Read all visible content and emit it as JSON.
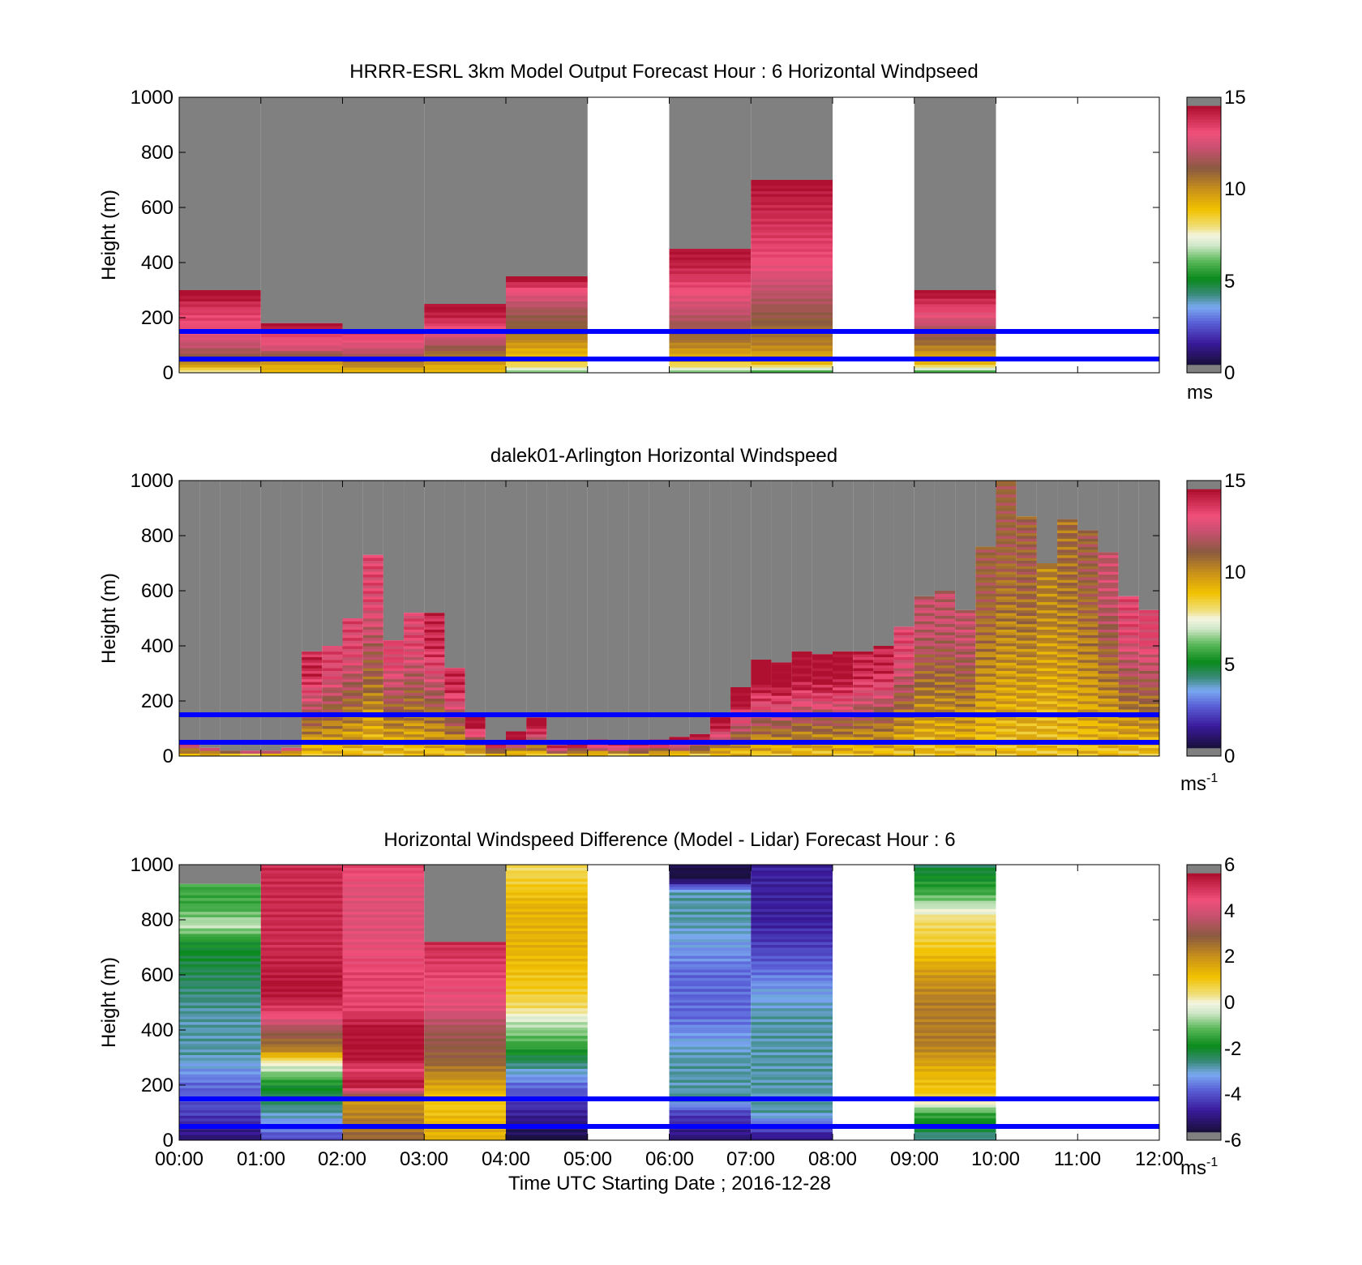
{
  "figure": {
    "panels": [
      {
        "title": "HRRR-ESRL 3km Model Output   Forecast Hour : 6 Horizontal Windpseed",
        "ylabel": "Height (m)",
        "yticks": [
          "0",
          "200",
          "400",
          "600",
          "800",
          "1000"
        ],
        "colorbar": {
          "ticks": [
            "0",
            "5",
            "10",
            "15"
          ],
          "unit": "ms",
          "unit_sup": ""
        }
      },
      {
        "title": "dalek01-Arlington  Horizontal Windspeed",
        "ylabel": "Height (m)",
        "yticks": [
          "0",
          "200",
          "400",
          "600",
          "800",
          "1000"
        ],
        "colorbar": {
          "ticks": [
            "0",
            "5",
            "10",
            "15"
          ],
          "unit": "ms",
          "unit_sup": "-1"
        }
      },
      {
        "title": "Horizontal Windspeed Difference (Model - Lidar) Forecast Hour : 6",
        "ylabel": "Height (m)",
        "yticks": [
          "0",
          "200",
          "400",
          "600",
          "800",
          "1000"
        ],
        "colorbar": {
          "ticks": [
            "-6",
            "-4",
            "-2",
            "0",
            "2",
            "4",
            "6"
          ],
          "unit": "ms",
          "unit_sup": "-1"
        }
      }
    ],
    "xticks": [
      "00:00",
      "01:00",
      "02:00",
      "03:00",
      "04:00",
      "05:00",
      "06:00",
      "07:00",
      "08:00",
      "09:00",
      "10:00",
      "11:00",
      "12:00"
    ],
    "xlabel": "Time UTC  Starting Date ; 2016-12-28"
  },
  "chart_data": [
    {
      "type": "heatmap",
      "title": "HRRR-ESRL 3km Model Output   Forecast Hour : 6 Horizontal Windpseed",
      "xlabel": "",
      "ylabel": "Height (m)",
      "xlim_hours": [
        0,
        12
      ],
      "ylim": [
        0,
        1000
      ],
      "colorbar": {
        "range": [
          0,
          15
        ],
        "unit": "ms"
      },
      "reference_lines_m": [
        50,
        150
      ],
      "columns": [
        {
          "t0": 0,
          "t1": 1,
          "top": 300,
          "missing": false,
          "profile": [
            [
              0,
              7.5
            ],
            [
              20,
              9
            ],
            [
              40,
              11
            ],
            [
              100,
              12.5
            ],
            [
              160,
              13.5
            ],
            [
              230,
              14
            ],
            [
              280,
              15
            ]
          ]
        },
        {
          "t0": 1,
          "t1": 2,
          "top": 180,
          "missing": false,
          "profile": [
            [
              0,
              9
            ],
            [
              40,
              10
            ],
            [
              90,
              13
            ],
            [
              130,
              13.5
            ],
            [
              170,
              15
            ]
          ]
        },
        {
          "t0": 2,
          "t1": 3,
          "top": 150,
          "missing": false,
          "profile": [
            [
              0,
              9
            ],
            [
              40,
              11
            ],
            [
              80,
              12.5
            ],
            [
              140,
              14
            ]
          ]
        },
        {
          "t0": 3,
          "t1": 4,
          "top": 250,
          "missing": false,
          "profile": [
            [
              0,
              9
            ],
            [
              40,
              10
            ],
            [
              100,
              12
            ],
            [
              140,
              13
            ],
            [
              200,
              14.5
            ],
            [
              240,
              15
            ]
          ]
        },
        {
          "t0": 4,
          "t1": 5,
          "top": 350,
          "missing": false,
          "profile": [
            [
              0,
              6
            ],
            [
              30,
              8.5
            ],
            [
              80,
              9.5
            ],
            [
              150,
              11
            ],
            [
              230,
              12
            ],
            [
              300,
              13.5
            ],
            [
              340,
              15
            ]
          ]
        },
        {
          "t0": 5,
          "t1": 6,
          "top": 0,
          "missing": true,
          "profile": []
        },
        {
          "t0": 6,
          "t1": 7,
          "top": 450,
          "missing": false,
          "profile": [
            [
              0,
              6
            ],
            [
              30,
              8.5
            ],
            [
              80,
              10
            ],
            [
              150,
              11.5
            ],
            [
              220,
              12.5
            ],
            [
              300,
              13.5
            ],
            [
              380,
              14.5
            ],
            [
              440,
              15
            ]
          ]
        },
        {
          "t0": 7,
          "t1": 8,
          "top": 700,
          "missing": false,
          "profile": [
            [
              0,
              5
            ],
            [
              30,
              9
            ],
            [
              100,
              10.5
            ],
            [
              200,
              11.5
            ],
            [
              300,
              12.5
            ],
            [
              400,
              13.5
            ],
            [
              500,
              14
            ],
            [
              600,
              14.5
            ],
            [
              690,
              15
            ]
          ]
        },
        {
          "t0": 8,
          "t1": 9,
          "top": 0,
          "missing": true,
          "profile": []
        },
        {
          "t0": 9,
          "t1": 10,
          "top": 300,
          "missing": false,
          "profile": [
            [
              0,
              5
            ],
            [
              30,
              9
            ],
            [
              90,
              10.5
            ],
            [
              150,
              12
            ],
            [
              220,
              13.5
            ],
            [
              290,
              15
            ]
          ]
        },
        {
          "t0": 10,
          "t1": 12,
          "top": 0,
          "missing": true,
          "profile": []
        }
      ]
    },
    {
      "type": "heatmap",
      "title": "dalek01-Arlington  Horizontal Windspeed",
      "xlabel": "",
      "ylabel": "Height (m)",
      "xlim_hours": [
        0,
        12
      ],
      "ylim": [
        0,
        1000
      ],
      "colorbar": {
        "range": [
          0,
          15
        ],
        "unit": "ms-1"
      },
      "reference_lines_m": [
        50,
        150
      ],
      "column_width_hours": 0.25,
      "column_tops_m": [
        50,
        30,
        20,
        20,
        20,
        30,
        380,
        400,
        500,
        730,
        420,
        520,
        520,
        320,
        150,
        50,
        90,
        140,
        40,
        50,
        60,
        50,
        50,
        60,
        70,
        80,
        150,
        250,
        350,
        340,
        380,
        370,
        380,
        380,
        400,
        470,
        580,
        600,
        530,
        760,
        1000,
        870,
        700,
        860,
        820,
        740,
        580,
        530
      ],
      "column_speeds_ms": [
        12,
        12,
        12,
        12,
        12,
        12,
        13,
        12,
        12,
        12,
        12,
        12,
        13,
        13,
        14,
        14,
        14,
        14,
        14,
        14,
        14,
        14,
        14,
        14,
        14,
        14,
        14,
        14,
        14,
        14,
        14,
        14,
        14,
        13,
        13,
        12,
        11,
        11,
        11,
        10,
        10,
        10,
        9,
        9.5,
        10,
        11,
        12,
        12
      ]
    },
    {
      "type": "heatmap",
      "title": "Horizontal Windspeed Difference (Model - Lidar) Forecast Hour : 6",
      "xlabel": "Time UTC  Starting Date ; 2016-12-28",
      "ylabel": "Height (m)",
      "xlim_hours": [
        0,
        12
      ],
      "ylim": [
        0,
        1000
      ],
      "colorbar": {
        "range": [
          -6,
          6
        ],
        "unit": "ms-1"
      },
      "reference_lines_m": [
        50,
        150
      ],
      "columns": [
        {
          "t0": 0,
          "t1": 1,
          "top": 930,
          "missing": false,
          "profile": [
            [
              0,
              -5.5
            ],
            [
              100,
              -4.5
            ],
            [
              200,
              -4
            ],
            [
              310,
              -3
            ],
            [
              450,
              -3
            ],
            [
              600,
              -2.5
            ],
            [
              720,
              -2
            ],
            [
              780,
              -0.5
            ],
            [
              850,
              -1.5
            ],
            [
              920,
              -1.5
            ]
          ]
        },
        {
          "t0": 1,
          "t1": 2,
          "top": 1000,
          "missing": false,
          "profile": [
            [
              0,
              -4.5
            ],
            [
              100,
              -3
            ],
            [
              200,
              -2
            ],
            [
              280,
              0
            ],
            [
              330,
              2.5
            ],
            [
              400,
              3.5
            ],
            [
              460,
              5
            ],
            [
              540,
              6
            ],
            [
              700,
              5.5
            ],
            [
              850,
              5.5
            ],
            [
              1000,
              5.5
            ]
          ]
        },
        {
          "t0": 2,
          "t1": 3,
          "top": 1000,
          "missing": false,
          "profile": [
            [
              0,
              3
            ],
            [
              150,
              2
            ],
            [
              200,
              6
            ],
            [
              260,
              5
            ],
            [
              300,
              6
            ],
            [
              400,
              6
            ],
            [
              480,
              5
            ],
            [
              600,
              5
            ],
            [
              750,
              4.5
            ],
            [
              900,
              4.5
            ],
            [
              1000,
              5
            ]
          ]
        },
        {
          "t0": 3,
          "t1": 4,
          "top": 720,
          "missing": false,
          "profile": [
            [
              0,
              1.5
            ],
            [
              50,
              1.5
            ],
            [
              140,
              1
            ],
            [
              290,
              3
            ],
            [
              400,
              3.5
            ],
            [
              480,
              4.5
            ],
            [
              600,
              5
            ],
            [
              720,
              5.5
            ]
          ]
        },
        {
          "t0": 4,
          "t1": 5,
          "top": 1000,
          "missing": false,
          "profile": [
            [
              0,
              -6
            ],
            [
              100,
              -5
            ],
            [
              200,
              -4
            ],
            [
              260,
              -3
            ],
            [
              350,
              -1.5
            ],
            [
              430,
              -0.5
            ],
            [
              480,
              0.5
            ],
            [
              550,
              1
            ],
            [
              700,
              1.5
            ],
            [
              850,
              1.5
            ],
            [
              1000,
              0.5
            ]
          ]
        },
        {
          "t0": 5,
          "t1": 6,
          "top": 0,
          "missing": true,
          "profile": []
        },
        {
          "t0": 6,
          "t1": 7,
          "top": 1000,
          "missing": false,
          "profile": [
            [
              0,
              -5.5
            ],
            [
              100,
              -4.5
            ],
            [
              150,
              -3
            ],
            [
              300,
              -3
            ],
            [
              450,
              -4
            ],
            [
              600,
              -4
            ],
            [
              700,
              -3.5
            ],
            [
              800,
              -3
            ],
            [
              900,
              -3
            ],
            [
              950,
              -6
            ]
          ]
        },
        {
          "t0": 7,
          "t1": 8,
          "top": 1000,
          "missing": false,
          "profile": [
            [
              0,
              -5.5
            ],
            [
              100,
              -3
            ],
            [
              160,
              -3
            ],
            [
              300,
              -3
            ],
            [
              450,
              -3
            ],
            [
              550,
              -3.5
            ],
            [
              620,
              -4
            ],
            [
              700,
              -4.5
            ],
            [
              800,
              -5
            ],
            [
              900,
              -5
            ],
            [
              1000,
              -5
            ]
          ]
        },
        {
          "t0": 8,
          "t1": 9,
          "top": 0,
          "missing": true,
          "profile": []
        },
        {
          "t0": 9,
          "t1": 10,
          "top": 1000,
          "missing": false,
          "profile": [
            [
              0,
              -3
            ],
            [
              100,
              -1.5
            ],
            [
              160,
              1
            ],
            [
              250,
              1.5
            ],
            [
              350,
              2.5
            ],
            [
              500,
              2.5
            ],
            [
              600,
              2
            ],
            [
              700,
              1
            ],
            [
              800,
              0.5
            ],
            [
              850,
              -0.5
            ],
            [
              900,
              -1.5
            ],
            [
              1000,
              -2.5
            ]
          ]
        },
        {
          "t0": 10,
          "t1": 12,
          "top": 0,
          "missing": true,
          "profile": []
        }
      ]
    }
  ]
}
